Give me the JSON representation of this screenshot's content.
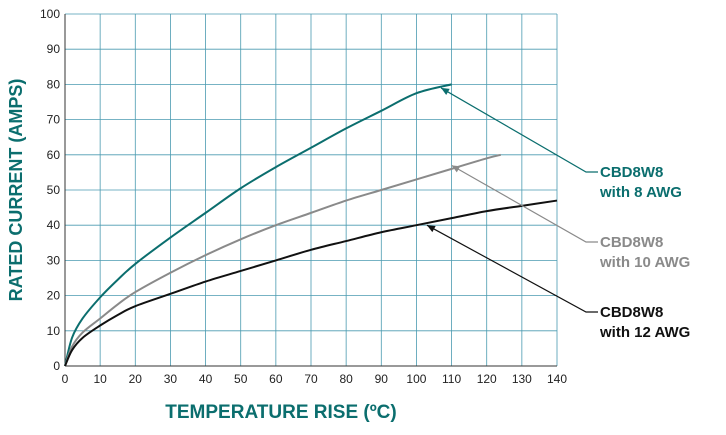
{
  "chart_data": {
    "type": "line",
    "title": "",
    "xlabel": "TEMPERATURE RISE (ºC)",
    "ylabel": "RATED CURRENT (AMPS)",
    "xlim": [
      0,
      140
    ],
    "ylim": [
      0,
      100
    ],
    "x_ticks": [
      0,
      10,
      20,
      30,
      40,
      50,
      60,
      70,
      80,
      90,
      100,
      110,
      120,
      130,
      140
    ],
    "y_ticks": [
      0,
      10,
      20,
      30,
      40,
      50,
      60,
      70,
      80,
      90,
      100
    ],
    "grid": true,
    "legend": "callout labels on right",
    "axis_title_color": "#0b6e6e",
    "series": [
      {
        "name_line1": "CBD8W8",
        "name_line2": "with 8 AWG",
        "color": "#0b6e6e",
        "x": [
          0,
          2,
          5,
          10,
          15,
          20,
          30,
          40,
          50,
          60,
          70,
          80,
          90,
          100,
          110
        ],
        "y": [
          0,
          8,
          13.5,
          19.5,
          24.5,
          29,
          36.5,
          43.5,
          50.5,
          56.5,
          62,
          67.5,
          72.5,
          77.5,
          80
        ]
      },
      {
        "name_line1": "CBD8W8",
        "name_line2": "with 10 AWG",
        "color": "#8a8a8a",
        "x": [
          0,
          2,
          5,
          10,
          15,
          20,
          30,
          40,
          50,
          60,
          70,
          80,
          90,
          100,
          110,
          120,
          124
        ],
        "y": [
          0,
          5.5,
          9.5,
          13.5,
          17.5,
          21,
          26.5,
          31.5,
          36,
          40,
          43.5,
          47,
          50,
          53,
          56,
          59,
          60
        ]
      },
      {
        "name_line1": "CBD8W8",
        "name_line2": "with 12 AWG",
        "color": "#111111",
        "x": [
          0,
          2,
          5,
          10,
          15,
          20,
          30,
          40,
          50,
          60,
          70,
          80,
          90,
          100,
          110,
          120,
          130,
          140
        ],
        "y": [
          0,
          4.5,
          8,
          11.5,
          14.5,
          17,
          20.5,
          24,
          27,
          30,
          33,
          35.5,
          38,
          40,
          42,
          44,
          45.5,
          47
        ]
      }
    ]
  }
}
